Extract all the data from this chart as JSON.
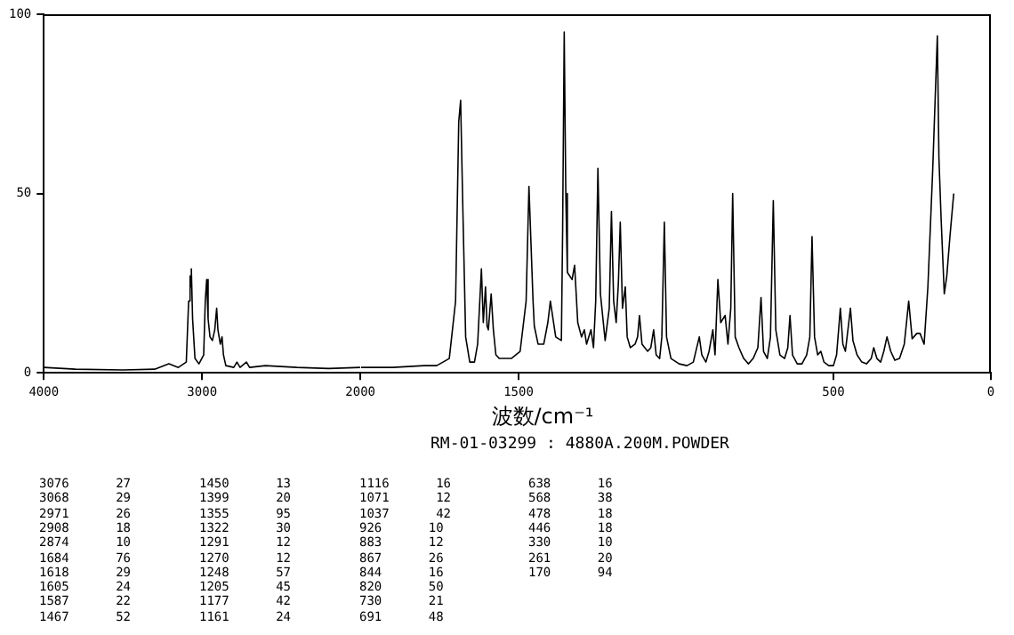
{
  "chart_data": [
    {
      "type": "line",
      "xlim": [
        4000,
        2000
      ],
      "xticks": [
        4000,
        3000,
        2000
      ],
      "ylim": [
        0,
        100
      ],
      "yticks": [
        0,
        50,
        100
      ],
      "series": [
        {
          "color": "#000000",
          "x": [
            4000,
            3800,
            3500,
            3300,
            3210,
            3150,
            3100,
            3085,
            3076,
            3072,
            3068,
            3060,
            3045,
            3020,
            2990,
            2980,
            2971,
            2962,
            2950,
            2935,
            2920,
            2908,
            2900,
            2885,
            2874,
            2865,
            2850,
            2800,
            2780,
            2760,
            2720,
            2700,
            2600,
            2400,
            2200,
            2000
          ],
          "values": [
            1.5,
            1,
            0.8,
            1,
            2.5,
            1.5,
            3,
            20,
            27,
            24,
            29,
            15,
            4,
            2.5,
            5,
            20,
            26,
            15,
            10,
            9,
            12,
            18,
            12,
            8,
            10,
            5,
            2,
            1.5,
            3,
            1.5,
            3,
            1.5,
            2,
            1.5,
            1.2,
            1.5
          ]
        }
      ]
    },
    {
      "type": "line",
      "xlabel": "波数/cm⁻¹",
      "tick_labels": "x",
      "xlim": [
        2000,
        0
      ],
      "xticks": [
        1500,
        500,
        0
      ],
      "ylim": [
        0,
        100
      ],
      "series": [
        {
          "color": "#000000",
          "x": [
            2000,
            1900,
            1800,
            1760,
            1720,
            1700,
            1690,
            1684,
            1678,
            1668,
            1655,
            1640,
            1630,
            1618,
            1612,
            1605,
            1600,
            1596,
            1587,
            1580,
            1572,
            1561,
            1523,
            1495,
            1476,
            1467,
            1454,
            1450,
            1438,
            1420,
            1407,
            1399,
            1382,
            1364,
            1360,
            1355,
            1350,
            1345,
            1330,
            1322,
            1312,
            1300,
            1291,
            1284,
            1270,
            1262,
            1255,
            1248,
            1240,
            1225,
            1212,
            1205,
            1198,
            1190,
            1183,
            1177,
            1170,
            1161,
            1155,
            1145,
            1130,
            1122,
            1116,
            1108,
            1090,
            1080,
            1071,
            1063,
            1052,
            1045,
            1037,
            1030,
            1016,
            990,
            965,
            945,
            926,
            918,
            905,
            895,
            883,
            876,
            867,
            858,
            844,
            835,
            826,
            820,
            812,
            800,
            785,
            770,
            755,
            740,
            730,
            722,
            710,
            700,
            691,
            683,
            670,
            655,
            645,
            638,
            630,
            615,
            600,
            585,
            575,
            568,
            560,
            550,
            540,
            530,
            515,
            500,
            490,
            478,
            470,
            462,
            446,
            438,
            425,
            410,
            395,
            380,
            372,
            362,
            350,
            340,
            330,
            318,
            305,
            290,
            275,
            261,
            250,
            235,
            225,
            212,
            200,
            185,
            170,
            165,
            158,
            148,
            140,
            130,
            118
          ],
          "values": [
            1.5,
            1.5,
            2,
            2,
            4,
            20,
            70,
            76,
            50,
            10,
            3,
            3,
            8,
            29,
            14,
            24,
            13,
            12,
            22,
            12,
            5,
            4,
            4,
            6,
            20,
            52,
            20,
            13,
            8,
            8,
            14,
            20,
            10,
            9,
            40,
            95,
            50,
            28,
            26,
            30,
            14,
            10,
            12,
            8,
            12,
            7,
            20,
            57,
            22,
            9,
            18,
            45,
            20,
            14,
            25,
            42,
            18,
            24,
            10,
            7,
            8,
            10,
            16,
            8,
            6,
            7,
            12,
            5,
            4,
            10,
            42,
            10,
            4,
            2.5,
            2,
            3,
            10,
            5,
            3,
            6,
            12,
            5,
            26,
            14,
            16,
            8,
            18,
            50,
            10,
            7,
            4,
            2.5,
            4,
            7,
            21,
            6,
            4,
            10,
            48,
            12,
            5,
            4,
            7,
            16,
            5,
            2.5,
            2.5,
            5,
            10,
            38,
            10,
            5,
            6,
            3,
            2,
            2,
            5,
            18,
            8,
            6,
            18,
            9,
            5,
            3,
            2.5,
            4,
            7,
            4,
            3,
            6,
            10,
            6,
            3.5,
            4,
            8,
            20,
            9.5,
            11,
            11,
            8,
            24,
            56,
            94,
            60,
            43,
            22,
            27,
            38,
            50
          ]
        }
      ],
      "annotations": [
        "RM-01-03299 : 4880A.200M.POWDER",
        "3076 27",
        "3068 29",
        "2971 26",
        "2908 18",
        "2874 10",
        "1684 76",
        "1618 29",
        "1605 24",
        "1587 22",
        "1467 52",
        "1450 13",
        "1399 20",
        "1355 95",
        "1322 30",
        "1291 12",
        "1270 12",
        "1248 57",
        "1205 45",
        "1177 42",
        "1161 24",
        "1116 16",
        "1071 12",
        "1037 42",
        "926 10",
        "883 12",
        "867 26",
        "844 16",
        "820 50",
        "730 21",
        "691 48",
        "638 16",
        "568 38",
        "478 18",
        "446 18",
        "330 10",
        "261 20",
        "170 94"
      ]
    }
  ]
}
